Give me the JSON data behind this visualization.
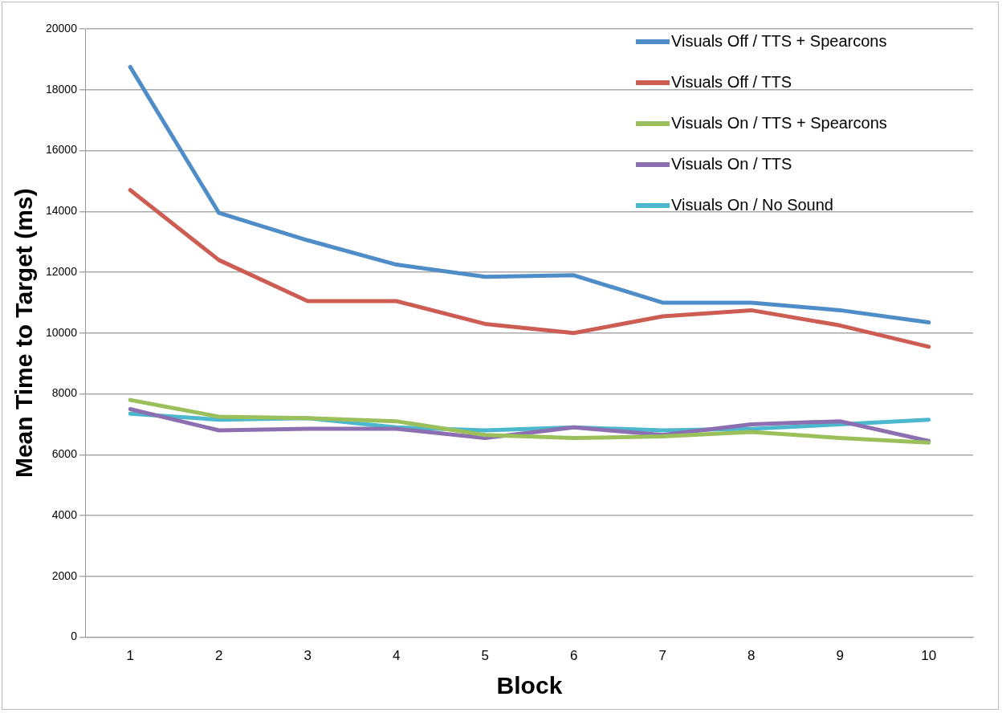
{
  "chart_data": {
    "type": "line",
    "xlabel": "Block",
    "ylabel": "Mean Time to Target (ms)",
    "categories": [
      "1",
      "2",
      "3",
      "4",
      "5",
      "6",
      "7",
      "8",
      "9",
      "10"
    ],
    "ylim": [
      0,
      20000
    ],
    "yticks": [
      0,
      2000,
      4000,
      6000,
      8000,
      10000,
      12000,
      14000,
      16000,
      18000,
      20000
    ],
    "grid": "y",
    "legend": "top right",
    "marker": "none",
    "line_style": "solid",
    "series": [
      {
        "name": "Visuals Off / TTS + Spearcons",
        "color": "#4f8dc8",
        "values": [
          18750,
          13950,
          13050,
          12250,
          11850,
          11900,
          11000,
          11000,
          10750,
          10350
        ]
      },
      {
        "name": "Visuals Off / TTS",
        "color": "#cd5c52",
        "values": [
          14700,
          12400,
          11050,
          11050,
          10300,
          10000,
          10550,
          10750,
          10250,
          9550
        ]
      },
      {
        "name": "Visuals On / TTS + Spearcons",
        "color": "#9bbf5a",
        "values": [
          7800,
          7250,
          7200,
          7100,
          6650,
          6550,
          6600,
          6750,
          6550,
          6400
        ]
      },
      {
        "name": "Visuals On / TTS",
        "color": "#8c6fb0",
        "values": [
          7500,
          6800,
          6850,
          6850,
          6550,
          6900,
          6650,
          7000,
          7100,
          6450
        ]
      },
      {
        "name": "Visuals On / No Sound",
        "color": "#4bb8cd",
        "values": [
          7350,
          7150,
          7200,
          6900,
          6800,
          6900,
          6800,
          6850,
          7000,
          7150
        ]
      }
    ]
  }
}
